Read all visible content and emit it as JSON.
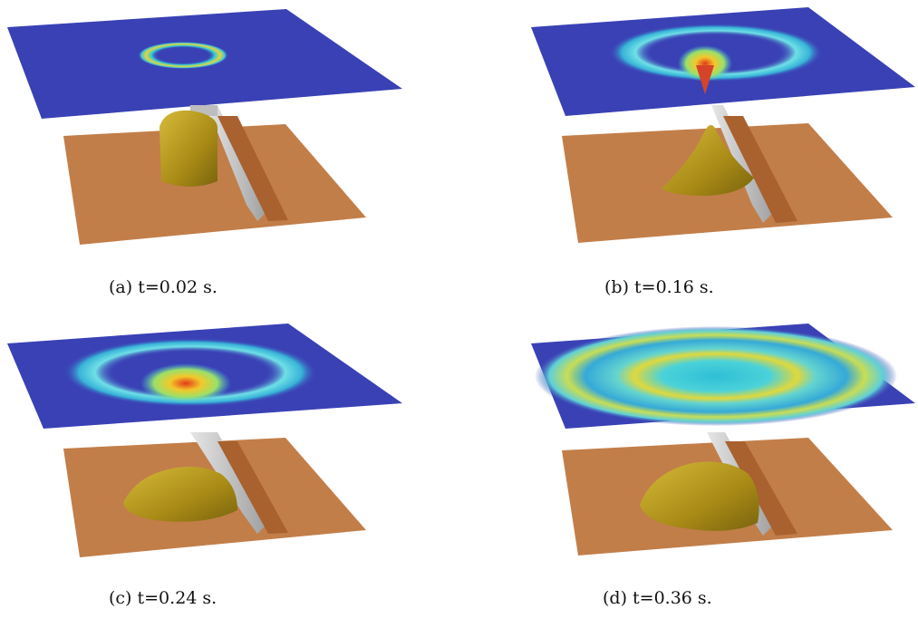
{
  "figure": {
    "panels": [
      {
        "id": "a",
        "caption": "(a) t=0.02 s."
      },
      {
        "id": "b",
        "caption": "(b) t=0.16 s."
      },
      {
        "id": "c",
        "caption": "(c) t=0.24 s."
      },
      {
        "id": "d",
        "caption": "(d) t=0.36 s."
      }
    ]
  },
  "colors": {
    "free_surface": "#3a41b5",
    "ground": "#c27e49",
    "wall": "#c9c9c9",
    "fluid": "#b89a1e"
  }
}
